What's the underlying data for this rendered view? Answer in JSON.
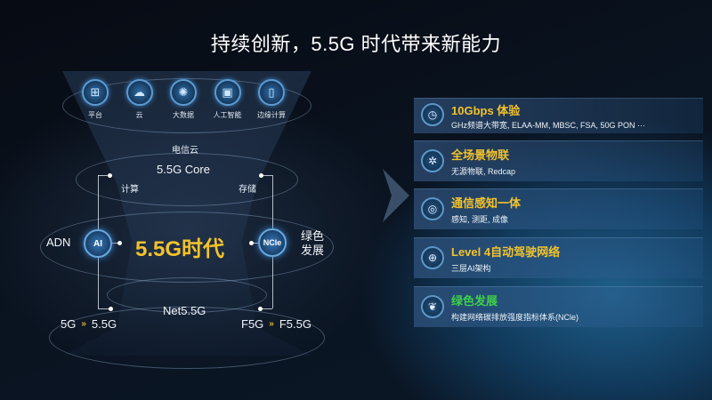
{
  "title": "持续创新，5.5G 时代带来新能力",
  "top_icons": [
    {
      "icon": "platform-icon",
      "label": "平台"
    },
    {
      "icon": "cloud-icon",
      "label": "云"
    },
    {
      "icon": "big-data-icon",
      "label": "大数据"
    },
    {
      "icon": "ai-chip-icon",
      "label": "人工智能"
    },
    {
      "icon": "edge-computing-icon",
      "label": "边缘计算"
    }
  ],
  "diagram": {
    "telecom_cloud": "电信云",
    "core": "5.5G Core",
    "compute": "计算",
    "storage": "存储",
    "adn": "ADN",
    "ai_node": "AI",
    "era": "5.5G时代",
    "ncle_node": "NCle",
    "green_1": "绿色",
    "green_2": "发展",
    "net": "Net5.5G",
    "from_5g": "5G",
    "to_5g": "5.5G",
    "from_f5g": "F5G",
    "to_f5g": "F5.5G"
  },
  "capabilities": [
    {
      "icon": "speed-gauge-icon",
      "title": "10Gbps 体验",
      "subtitle": "GHz频谱大带宽, ELAA-MM, MBSC, FSA, 50G PON ···",
      "color": "#f3c22c"
    },
    {
      "icon": "iot-network-icon",
      "title": "全场景物联",
      "subtitle": "无源物联, Redcap",
      "color": "#f3c22c"
    },
    {
      "icon": "sensing-icon",
      "title": "通信感知一体",
      "subtitle": "感知, 测距, 成像",
      "color": "#f3c22c"
    },
    {
      "icon": "globe-network-icon",
      "title": "Level 4自动驾驶网络",
      "subtitle": "三层AI架构",
      "color": "#f3c22c"
    },
    {
      "icon": "leaf-icon",
      "title": "绿色发展",
      "subtitle": "构建网络碳排放强度指标体系(NCle)",
      "color": "#3fd04a"
    }
  ]
}
